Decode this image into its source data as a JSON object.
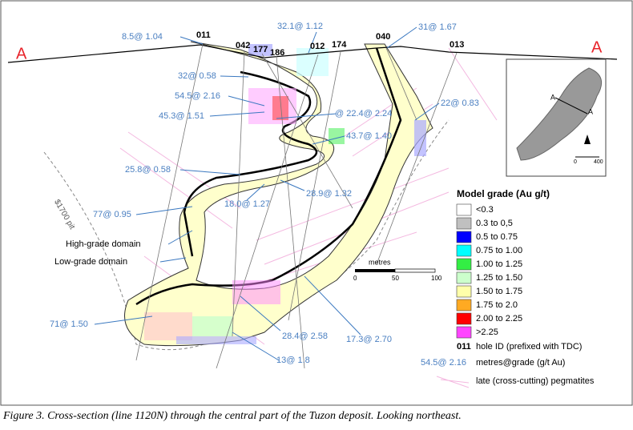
{
  "section": {
    "left_label": "A",
    "right_label": "A",
    "pit_label": "$1700 pit"
  },
  "holes": [
    "011",
    "042",
    "177",
    "186",
    "012",
    "174",
    "040",
    "013"
  ],
  "intercepts": [
    "8.5@ 1.04",
    "32.1@ 1.12",
    "31@ 1.67",
    "32@ 0.58",
    "54.5@ 2.16",
    "45.3@ 1.51",
    "@ 22.4@ 2.24",
    "22@ 0.83",
    "43.7@ 1.40",
    "25.8@ 0.58",
    "28.9@ 1.32",
    "18.0@ 1.27",
    "77@ 0.95",
    "71@ 1.50",
    "28.4@ 2.58",
    "17.3@ 2.70",
    "13@ 1.8"
  ],
  "domains": {
    "high": "High-grade domain",
    "low": "Low-grade domain"
  },
  "scale": {
    "title": "metres",
    "ticks": [
      "0",
      "50",
      "100"
    ]
  },
  "inset": {
    "label_a1": "A",
    "label_a2": "A",
    "scale_0": "0",
    "scale_400": "400"
  },
  "legend": {
    "title": "Model grade (Au g/t)",
    "items": [
      {
        "label": "<0.3",
        "color": "#ffffff"
      },
      {
        "label": "0.3 to 0,5",
        "color": "#c0c0c0"
      },
      {
        "label": "0.5 to 0.75",
        "color": "#0000ff"
      },
      {
        "label": "0.75 to 1.00",
        "color": "#00ffff"
      },
      {
        "label": "1.00 to 1.25",
        "color": "#33ee44"
      },
      {
        "label": "1.25 to 1.50",
        "color": "#ccffcc"
      },
      {
        "label": "1.50 to 1.75",
        "color": "#ffffaa"
      },
      {
        "label": "1.75 to 2.0",
        "color": "#ffaa22"
      },
      {
        "label": "2.00 to 2.25",
        "color": "#ff0000"
      },
      {
        "label": ">2.25",
        "color": "#ff44ff"
      }
    ],
    "hole_key": "011",
    "hole_text": "hole ID (prefixed with TDC)",
    "grade_key": "54.5@ 2.16",
    "grade_text": "metres@grade (g/t Au)",
    "peg_text": "late (cross-cutting) pegmatites"
  },
  "caption": "Figure 3. Cross-section (line 1120N) through the central part of the Tuzon deposit. Looking northeast."
}
